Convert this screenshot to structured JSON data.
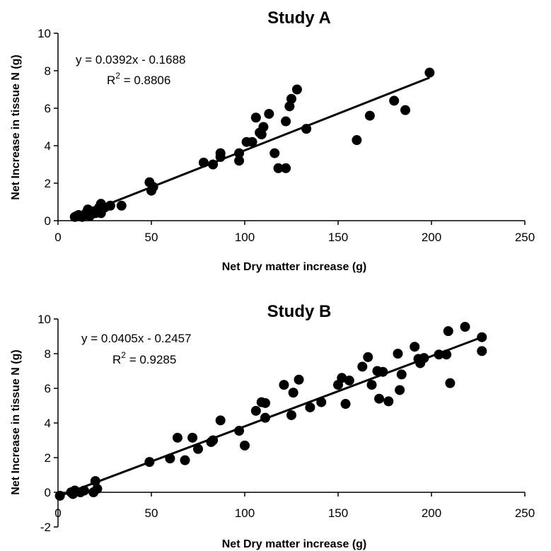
{
  "chart_data": [
    {
      "type": "scatter",
      "title": "Study A",
      "xlabel": "Net Dry matter increase (g)",
      "ylabel": "Net Increase in tissue N (g)",
      "xlim": [
        0,
        250
      ],
      "ylim": [
        0,
        10
      ],
      "xticks": [
        0,
        50,
        100,
        150,
        200,
        250
      ],
      "yticks": [
        0,
        2,
        4,
        6,
        8,
        10
      ],
      "grid": false,
      "trendline": {
        "slope": 0.0392,
        "intercept": -0.1688,
        "x_range": [
          9,
          199
        ]
      },
      "annotations": {
        "equation": "y = 0.0392x - 0.1688",
        "r2_prefix": "R",
        "r2_exp": "2",
        "r2_value": " = 0.8806"
      },
      "series": [
        {
          "points": [
            [
              9,
              0.2
            ],
            [
              10,
              0.25
            ],
            [
              11,
              0.3
            ],
            [
              13,
              0.2
            ],
            [
              14,
              0.3
            ],
            [
              15,
              0.4
            ],
            [
              16,
              0.6
            ],
            [
              17,
              0.25
            ],
            [
              18,
              0.35
            ],
            [
              19,
              0.5
            ],
            [
              20,
              0.4
            ],
            [
              21,
              0.55
            ],
            [
              22,
              0.7
            ],
            [
              23,
              0.9
            ],
            [
              23,
              0.4
            ],
            [
              25,
              0.7
            ],
            [
              28,
              0.8
            ],
            [
              34,
              0.8
            ],
            [
              49,
              2.05
            ],
            [
              50,
              1.6
            ],
            [
              51,
              1.8
            ],
            [
              78,
              3.1
            ],
            [
              83,
              3.0
            ],
            [
              87,
              3.4
            ],
            [
              87,
              3.6
            ],
            [
              97,
              3.6
            ],
            [
              97,
              3.2
            ],
            [
              101,
              4.2
            ],
            [
              104,
              4.2
            ],
            [
              106,
              5.5
            ],
            [
              108,
              4.7
            ],
            [
              109,
              4.6
            ],
            [
              110,
              5.0
            ],
            [
              113,
              5.7
            ],
            [
              116,
              3.6
            ],
            [
              118,
              2.8
            ],
            [
              122,
              5.3
            ],
            [
              122,
              2.8
            ],
            [
              124,
              6.1
            ],
            [
              125,
              6.5
            ],
            [
              128,
              7.0
            ],
            [
              133,
              4.9
            ],
            [
              160,
              4.3
            ],
            [
              167,
              5.6
            ],
            [
              180,
              6.4
            ],
            [
              186,
              5.9
            ],
            [
              199,
              7.9
            ]
          ]
        }
      ]
    },
    {
      "type": "scatter",
      "title": "Study B",
      "xlabel": "Net Dry matter increase (g)",
      "ylabel": "Net Increase in tissue N (g)",
      "xlim": [
        0,
        250
      ],
      "ylim": [
        -2,
        10
      ],
      "xticks": [
        0,
        50,
        100,
        150,
        200,
        250
      ],
      "yticks": [
        -2,
        0,
        2,
        4,
        6,
        8,
        10
      ],
      "grid": false,
      "trendline": {
        "slope": 0.0405,
        "intercept": -0.2457,
        "x_range": [
          1,
          227
        ]
      },
      "annotations": {
        "equation": "y = 0.0405x - 0.2457",
        "r2_prefix": "R",
        "r2_exp": "2",
        "r2_value": " = 0.9285"
      },
      "series": [
        {
          "points": [
            [
              1,
              -0.2
            ],
            [
              7,
              0.0
            ],
            [
              8,
              -0.1
            ],
            [
              9,
              0.1
            ],
            [
              12,
              0.0
            ],
            [
              14,
              0.1
            ],
            [
              19,
              0.0
            ],
            [
              20,
              0.65
            ],
            [
              21,
              0.2
            ],
            [
              49,
              1.75
            ],
            [
              60,
              1.95
            ],
            [
              64,
              3.15
            ],
            [
              68,
              1.85
            ],
            [
              72,
              3.15
            ],
            [
              75,
              2.5
            ],
            [
              82,
              2.9
            ],
            [
              83,
              3.0
            ],
            [
              87,
              4.15
            ],
            [
              97,
              3.55
            ],
            [
              100,
              2.7
            ],
            [
              106,
              4.7
            ],
            [
              109,
              5.2
            ],
            [
              111,
              5.15
            ],
            [
              111,
              4.3
            ],
            [
              121,
              6.2
            ],
            [
              125,
              4.45
            ],
            [
              126,
              5.75
            ],
            [
              129,
              6.5
            ],
            [
              135,
              4.9
            ],
            [
              141,
              5.2
            ],
            [
              150,
              6.2
            ],
            [
              152,
              6.6
            ],
            [
              154,
              5.1
            ],
            [
              156,
              6.45
            ],
            [
              163,
              7.25
            ],
            [
              166,
              7.8
            ],
            [
              168,
              6.2
            ],
            [
              171,
              7.0
            ],
            [
              172,
              5.4
            ],
            [
              174,
              6.95
            ],
            [
              177,
              5.25
            ],
            [
              182,
              8.0
            ],
            [
              183,
              5.9
            ],
            [
              184,
              6.8
            ],
            [
              191,
              8.4
            ],
            [
              193,
              7.7
            ],
            [
              194,
              7.45
            ],
            [
              196,
              7.75
            ],
            [
              204,
              7.95
            ],
            [
              208,
              7.95
            ],
            [
              209,
              9.3
            ],
            [
              210,
              6.3
            ],
            [
              218,
              9.55
            ],
            [
              227,
              8.95
            ],
            [
              227,
              8.15
            ]
          ]
        }
      ]
    }
  ]
}
